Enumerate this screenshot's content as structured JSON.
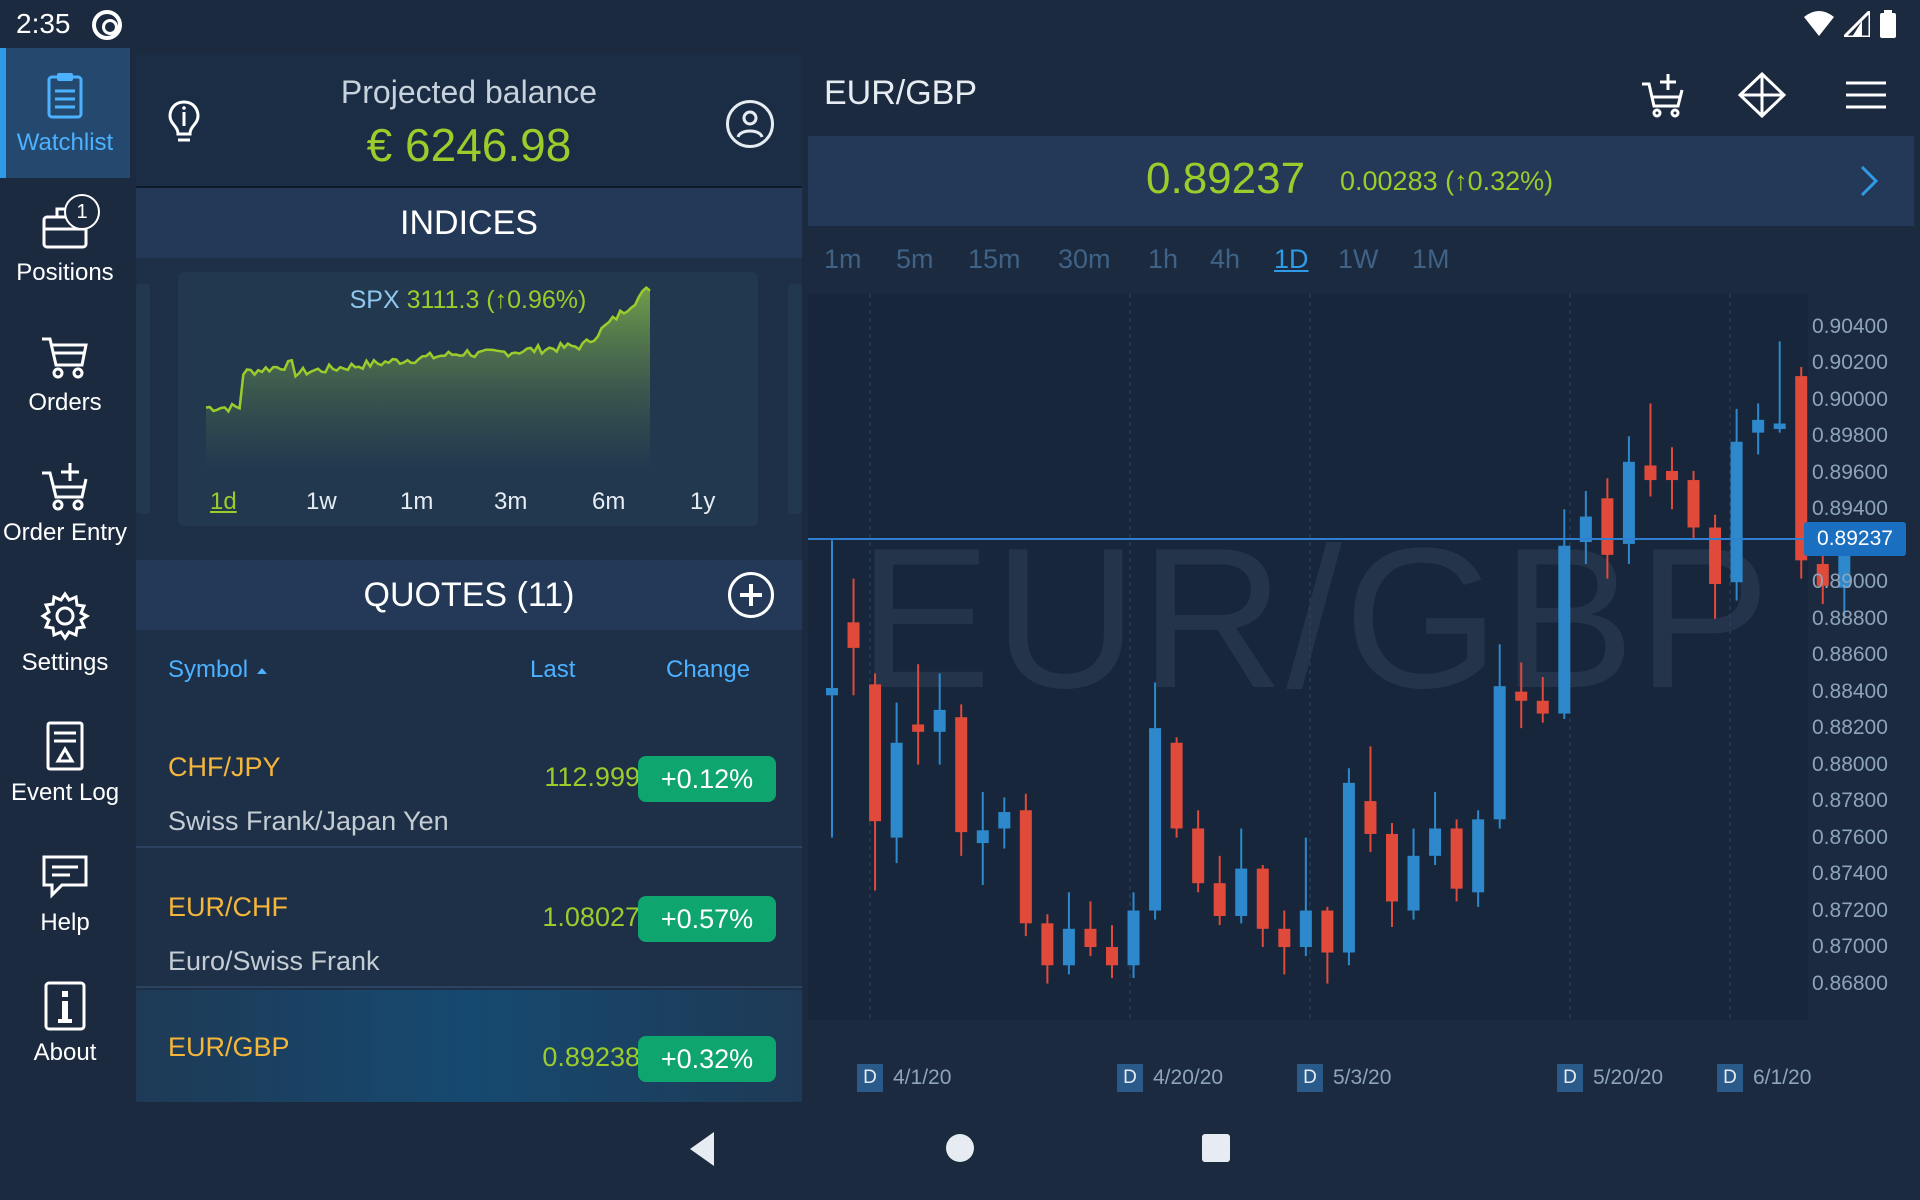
{
  "status": {
    "time": "2:35"
  },
  "sidebar": {
    "items": [
      {
        "label": "Watchlist",
        "active": true
      },
      {
        "label": "Positions",
        "badge": "1"
      },
      {
        "label": "Orders"
      },
      {
        "label": "Order Entry"
      },
      {
        "label": "Settings"
      },
      {
        "label": "Event Log"
      },
      {
        "label": "Help"
      },
      {
        "label": "About"
      }
    ]
  },
  "balance": {
    "title": "Projected balance",
    "amount": "€ 6246.98"
  },
  "indices": {
    "title": "INDICES",
    "symbol": "SPX",
    "value": "3111.3 (↑0.96%)",
    "periods": [
      "1d",
      "1w",
      "1m",
      "3m",
      "6m",
      "1y"
    ],
    "selected_period": "1d",
    "accent": "#9ccc2b"
  },
  "quotes": {
    "title": "QUOTES (11)",
    "columns": {
      "symbol": "Symbol",
      "last": "Last",
      "change": "Change"
    },
    "rows": [
      {
        "symbol": "CHF/JPY",
        "desc": "Swiss Frank/Japan Yen",
        "last": "112.999",
        "change": "+0.12%"
      },
      {
        "symbol": "EUR/CHF",
        "desc": "Euro/Swiss Frank",
        "last": "1.08027",
        "change": "+0.57%"
      },
      {
        "symbol": "EUR/GBP",
        "desc": "",
        "last": "0.89238",
        "change": "+0.32%",
        "selected": true
      }
    ]
  },
  "chart_header": {
    "pair": "EUR/GBP",
    "price": "0.89237",
    "change": "0.00283 (↑0.32%)",
    "timeframes": [
      "1m",
      "5m",
      "15m",
      "30m",
      "1h",
      "4h",
      "1D",
      "1W",
      "1M"
    ],
    "selected_timeframe": "1D"
  },
  "chart_data": {
    "type": "candlestick",
    "watermark": "EUR/GBP",
    "ylim": [
      0.866,
      0.9058
    ],
    "y_ticks": [
      "0.90400",
      "0.90200",
      "0.90000",
      "0.89800",
      "0.89600",
      "0.89400",
      "0.89000",
      "0.88800",
      "0.88600",
      "0.88400",
      "0.88200",
      "0.88000",
      "0.87800",
      "0.87600",
      "0.87400",
      "0.87200",
      "0.87000",
      "0.86800"
    ],
    "current_price": "0.89237",
    "current_price_value": 0.89237,
    "x_dates": [
      {
        "marker": "D",
        "label": "4/1/20"
      },
      {
        "marker": "D",
        "label": "4/20/20"
      },
      {
        "marker": "D",
        "label": "5/3/20"
      },
      {
        "marker": "D",
        "label": "5/20/20"
      },
      {
        "marker": "D",
        "label": "6/1/20"
      }
    ],
    "up_color": "#2d89cc",
    "down_color": "#e04a3b",
    "candles": [
      [
        0.8838,
        0.8842,
        0.8923,
        0.876
      ],
      [
        0.8878,
        0.8864,
        0.8902,
        0.8838
      ],
      [
        0.8844,
        0.8769,
        0.885,
        0.8731
      ],
      [
        0.876,
        0.8812,
        0.8834,
        0.8746
      ],
      [
        0.8822,
        0.8818,
        0.8855,
        0.88
      ],
      [
        0.8818,
        0.883,
        0.885,
        0.88
      ],
      [
        0.8826,
        0.8763,
        0.8833,
        0.875
      ],
      [
        0.8757,
        0.8764,
        0.8785,
        0.8734
      ],
      [
        0.8765,
        0.8774,
        0.8782,
        0.8754
      ],
      [
        0.8775,
        0.8713,
        0.8784,
        0.8706
      ],
      [
        0.8713,
        0.869,
        0.8718,
        0.868
      ],
      [
        0.869,
        0.871,
        0.873,
        0.8685
      ],
      [
        0.871,
        0.87,
        0.8725,
        0.8695
      ],
      [
        0.87,
        0.869,
        0.8712,
        0.8683
      ],
      [
        0.869,
        0.872,
        0.873,
        0.8683
      ],
      [
        0.872,
        0.882,
        0.8845,
        0.8715
      ],
      [
        0.8812,
        0.8765,
        0.8815,
        0.876
      ],
      [
        0.8765,
        0.8735,
        0.8775,
        0.873
      ],
      [
        0.8735,
        0.8717,
        0.875,
        0.8712
      ],
      [
        0.8717,
        0.8743,
        0.8765,
        0.8713
      ],
      [
        0.8743,
        0.871,
        0.8745,
        0.87
      ],
      [
        0.871,
        0.87,
        0.872,
        0.8685
      ],
      [
        0.87,
        0.872,
        0.876,
        0.8695
      ],
      [
        0.872,
        0.8697,
        0.8722,
        0.868
      ],
      [
        0.8697,
        0.879,
        0.8798,
        0.869
      ],
      [
        0.878,
        0.8762,
        0.881,
        0.8752
      ],
      [
        0.8762,
        0.8725,
        0.8768,
        0.8711
      ],
      [
        0.872,
        0.875,
        0.8765,
        0.8715
      ],
      [
        0.875,
        0.8765,
        0.8785,
        0.8745
      ],
      [
        0.8765,
        0.8732,
        0.877,
        0.8725
      ],
      [
        0.873,
        0.877,
        0.8775,
        0.8722
      ],
      [
        0.877,
        0.8843,
        0.8866,
        0.8765
      ],
      [
        0.884,
        0.8835,
        0.8856,
        0.882
      ],
      [
        0.8835,
        0.8828,
        0.8848,
        0.8823
      ],
      [
        0.8828,
        0.892,
        0.894,
        0.8825
      ],
      [
        0.8922,
        0.8936,
        0.895,
        0.891
      ],
      [
        0.8946,
        0.8915,
        0.8957,
        0.8902
      ],
      [
        0.8921,
        0.8966,
        0.898,
        0.891
      ],
      [
        0.8964,
        0.8956,
        0.8998,
        0.8947
      ],
      [
        0.8961,
        0.8956,
        0.8974,
        0.894
      ],
      [
        0.8956,
        0.893,
        0.8961,
        0.8924
      ],
      [
        0.893,
        0.8899,
        0.8937,
        0.888
      ],
      [
        0.89,
        0.8977,
        0.8995,
        0.889
      ],
      [
        0.8982,
        0.8989,
        0.8998,
        0.897
      ],
      [
        0.8984,
        0.8987,
        0.9032,
        0.8982
      ],
      [
        0.9013,
        0.8912,
        0.9018,
        0.8902
      ],
      [
        0.891,
        0.8898,
        0.8917,
        0.8888
      ],
      [
        0.8897,
        0.8925,
        0.8931,
        0.888
      ]
    ]
  }
}
